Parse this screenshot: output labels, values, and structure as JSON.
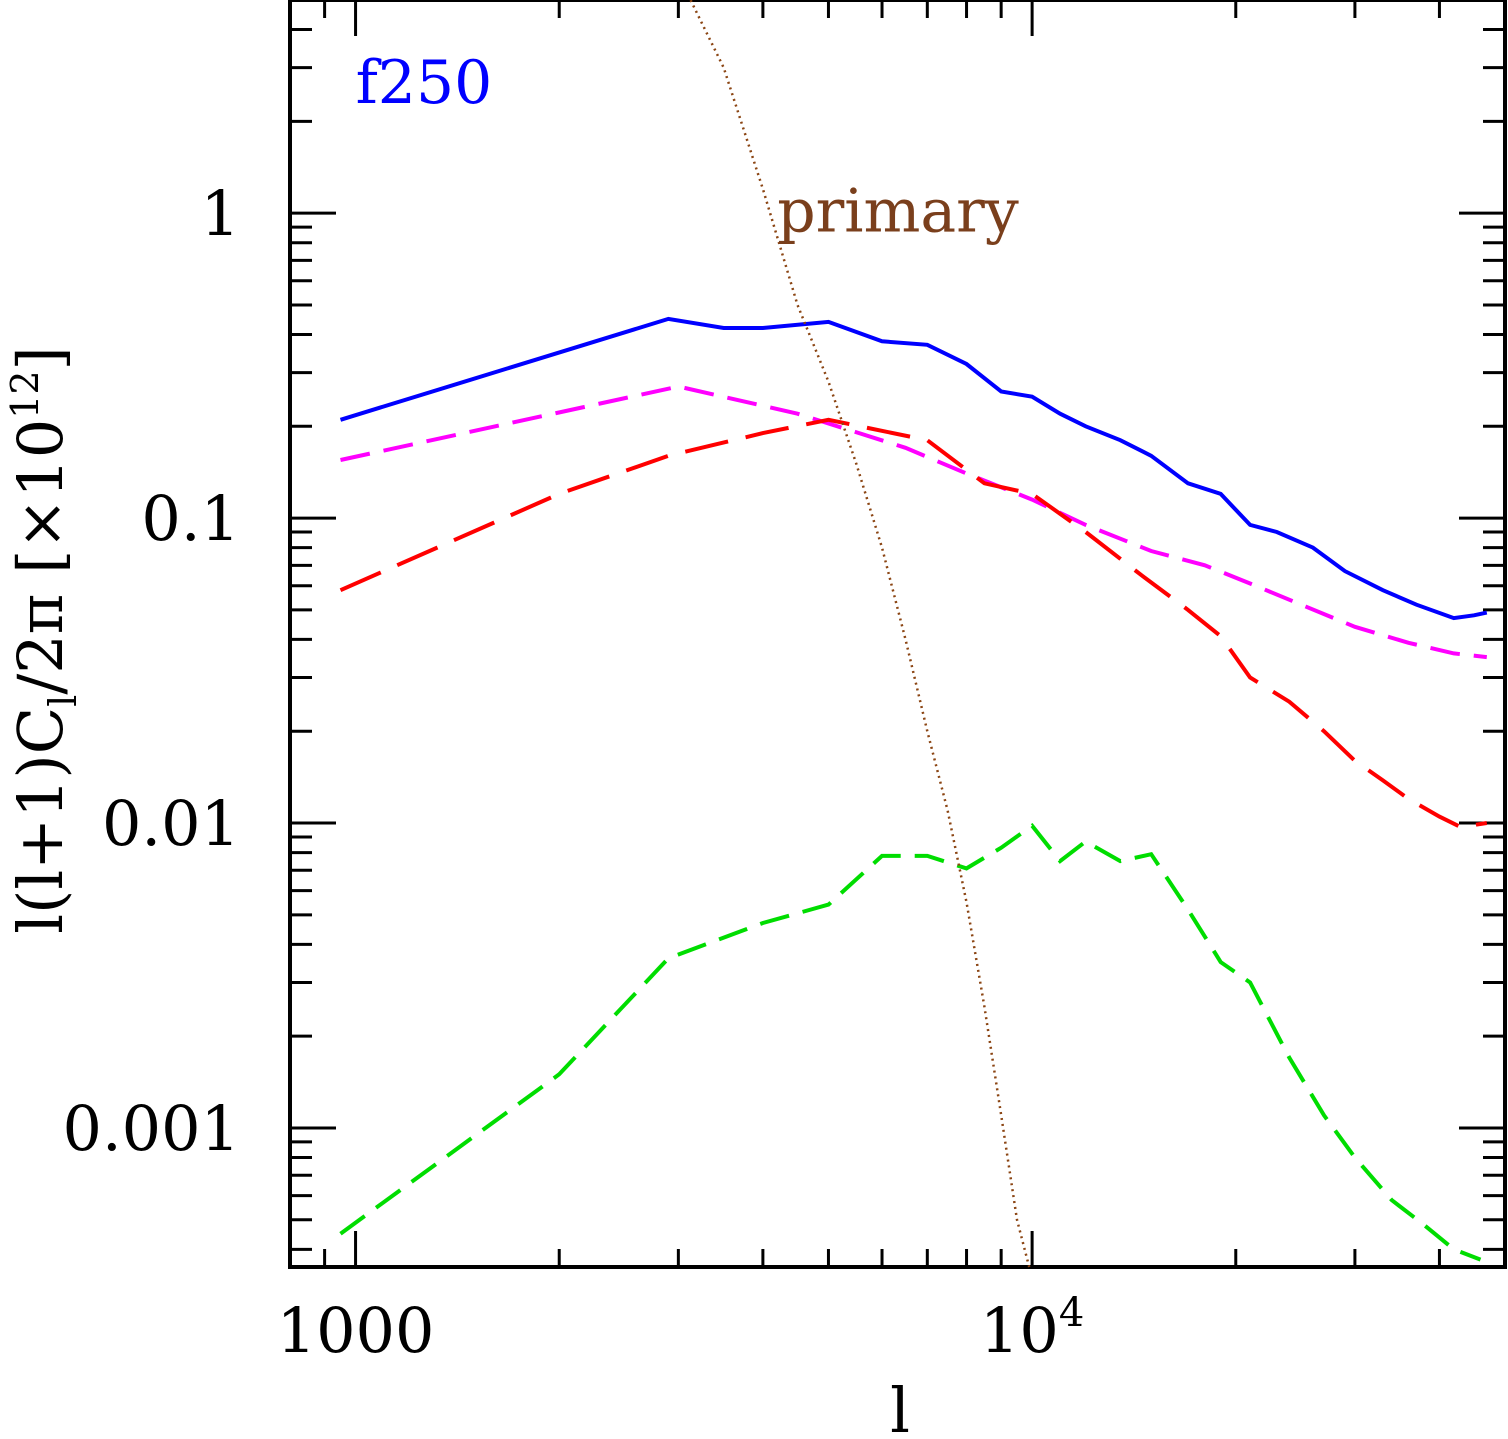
{
  "chart_data": {
    "type": "line",
    "x_scale": "log",
    "y_scale": "log",
    "xlim": [
      800,
      50000
    ],
    "ylim": [
      0.00035,
      5
    ],
    "xlabel": "l",
    "ylabel": "l(l+1)C",
    "ylabel_sub": "l",
    "ylabel_tail": "/2π  [×10",
    "ylabel_sup": "12",
    "ylabel_close": "]",
    "x_ticks": [
      {
        "value": 1000,
        "label": "1000"
      },
      {
        "value": 10000,
        "label": "10",
        "sup": "4"
      }
    ],
    "y_ticks": [
      {
        "value": 1,
        "label": "1"
      },
      {
        "value": 0.1,
        "label": "0.1"
      },
      {
        "value": 0.01,
        "label": "0.01"
      },
      {
        "value": 0.001,
        "label": "0.001"
      }
    ],
    "annotations": [
      {
        "text": "f250",
        "color": "#0000ff",
        "x": 1000,
        "y": 2.3
      },
      {
        "text": "primary",
        "color": "#7a3f1c",
        "x": 4200,
        "y": 0.87
      }
    ],
    "series": [
      {
        "color": "#0000ff",
        "dash": "solid",
        "points": [
          [
            950,
            0.21
          ],
          [
            2900,
            0.45
          ],
          [
            3500,
            0.42
          ],
          [
            4000,
            0.42
          ],
          [
            5000,
            0.44
          ],
          [
            6000,
            0.38
          ],
          [
            7000,
            0.37
          ],
          [
            8000,
            0.32
          ],
          [
            9000,
            0.26
          ],
          [
            10000,
            0.25
          ],
          [
            11000,
            0.22
          ],
          [
            12000,
            0.2
          ],
          [
            13500,
            0.18
          ],
          [
            15000,
            0.16
          ],
          [
            17000,
            0.13
          ],
          [
            19000,
            0.12
          ],
          [
            21000,
            0.095
          ],
          [
            23000,
            0.09
          ],
          [
            26000,
            0.08
          ],
          [
            29000,
            0.067
          ],
          [
            33000,
            0.058
          ],
          [
            37000,
            0.052
          ],
          [
            42000,
            0.047
          ],
          [
            45000,
            0.048
          ],
          [
            47000,
            0.049
          ]
        ]
      },
      {
        "color": "#ff00ff",
        "dash": "long",
        "points": [
          [
            950,
            0.155
          ],
          [
            3000,
            0.27
          ],
          [
            4500,
            0.22
          ],
          [
            6500,
            0.17
          ],
          [
            8000,
            0.14
          ],
          [
            10000,
            0.115
          ],
          [
            12000,
            0.095
          ],
          [
            15000,
            0.078
          ],
          [
            18000,
            0.07
          ],
          [
            21000,
            0.061
          ],
          [
            25000,
            0.052
          ],
          [
            30000,
            0.044
          ],
          [
            36000,
            0.039
          ],
          [
            42000,
            0.036
          ],
          [
            47000,
            0.035
          ]
        ]
      },
      {
        "color": "#ff0000",
        "dash": "xlong",
        "points": [
          [
            950,
            0.058
          ],
          [
            2000,
            0.12
          ],
          [
            2900,
            0.16
          ],
          [
            4000,
            0.19
          ],
          [
            5000,
            0.21
          ],
          [
            7000,
            0.18
          ],
          [
            8500,
            0.13
          ],
          [
            10000,
            0.12
          ],
          [
            12000,
            0.09
          ],
          [
            14500,
            0.065
          ],
          [
            17000,
            0.05
          ],
          [
            19000,
            0.041
          ],
          [
            21000,
            0.03
          ],
          [
            24000,
            0.025
          ],
          [
            27000,
            0.02
          ],
          [
            30000,
            0.016
          ],
          [
            33000,
            0.0138
          ],
          [
            36000,
            0.012
          ],
          [
            40000,
            0.0105
          ],
          [
            43000,
            0.0097
          ],
          [
            47000,
            0.01
          ]
        ]
      },
      {
        "color": "#00dd00",
        "dash": "long",
        "points": [
          [
            950,
            0.00045
          ],
          [
            2000,
            0.0015
          ],
          [
            2900,
            0.0036
          ],
          [
            4000,
            0.0047
          ],
          [
            5000,
            0.0054
          ],
          [
            6000,
            0.0078
          ],
          [
            7000,
            0.0078
          ],
          [
            8000,
            0.0071
          ],
          [
            9000,
            0.0083
          ],
          [
            10000,
            0.0098
          ],
          [
            11000,
            0.0075
          ],
          [
            12000,
            0.0087
          ],
          [
            13500,
            0.0075
          ],
          [
            15000,
            0.0079
          ],
          [
            17000,
            0.0052
          ],
          [
            19000,
            0.0035
          ],
          [
            21000,
            0.003
          ],
          [
            24000,
            0.0017
          ],
          [
            27000,
            0.0011
          ],
          [
            30000,
            0.0008
          ],
          [
            34000,
            0.00058
          ],
          [
            38000,
            0.00048
          ],
          [
            42000,
            0.0004
          ],
          [
            46000,
            0.00037
          ]
        ]
      },
      {
        "color": "#8b4513",
        "dash": "dotted",
        "points": [
          [
            3100,
            5.2
          ],
          [
            3500,
            3.0
          ],
          [
            4000,
            1.2
          ],
          [
            4500,
            0.5
          ],
          [
            5000,
            0.28
          ],
          [
            5500,
            0.15
          ],
          [
            6000,
            0.08
          ],
          [
            6500,
            0.04
          ],
          [
            7000,
            0.02
          ],
          [
            7500,
            0.011
          ],
          [
            8000,
            0.0055
          ],
          [
            8500,
            0.0025
          ],
          [
            9000,
            0.0011
          ],
          [
            9500,
            0.0005
          ],
          [
            9900,
            0.00035
          ]
        ]
      }
    ]
  }
}
